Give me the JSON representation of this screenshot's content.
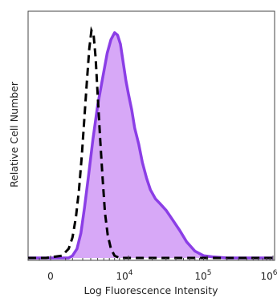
{
  "chart_data": {
    "type": "area",
    "xlabel": "Log Fluorescence Intensity",
    "ylabel": "Relative Cell Number",
    "x_scale": "biexponential",
    "xlim": [
      -1000,
      1000000
    ],
    "ylim": [
      0,
      1
    ],
    "grid": false,
    "x_ticks": [
      {
        "value": 0,
        "base": "0",
        "exp": ""
      },
      {
        "value": 10000,
        "base": "10",
        "exp": "4"
      },
      {
        "value": 100000,
        "base": "10",
        "exp": "5"
      },
      {
        "value": 1000000,
        "base": "10",
        "exp": "6"
      }
    ],
    "series": [
      {
        "style": "filled-area",
        "line_color": "#8b3ee6",
        "fill_color": "#d7a8f7",
        "x": [
          -1000,
          0,
          700,
          1000,
          1400,
          1800,
          2200,
          2700,
          3300,
          4000,
          4800,
          5600,
          6300,
          7000,
          7600,
          8200,
          8800,
          9400,
          10000,
          11000,
          12000,
          13500,
          15000,
          17000,
          19000,
          22000,
          25000,
          30000,
          36000,
          45000,
          55000,
          70000,
          90000,
          120000,
          200000,
          500000,
          1000000
        ],
        "y": [
          0.0,
          0.0,
          0.0,
          0.01,
          0.04,
          0.11,
          0.22,
          0.36,
          0.52,
          0.67,
          0.79,
          0.9,
          0.96,
          0.99,
          0.98,
          0.94,
          0.86,
          0.78,
          0.72,
          0.65,
          0.57,
          0.5,
          0.42,
          0.35,
          0.3,
          0.26,
          0.24,
          0.21,
          0.17,
          0.12,
          0.07,
          0.03,
          0.01,
          0.005,
          0.0,
          0.0,
          0.0
        ]
      },
      {
        "style": "dashed-line",
        "line_color": "#000000",
        "x": [
          -1000,
          -200,
          300,
          700,
          1000,
          1300,
          1600,
          1900,
          2200,
          2500,
          2800,
          3100,
          3400,
          3700,
          4000,
          4400,
          4800,
          5200,
          5700,
          6300,
          7000,
          8000,
          10000,
          1000000
        ],
        "y": [
          0.0,
          0.0,
          0.01,
          0.04,
          0.09,
          0.18,
          0.3,
          0.45,
          0.62,
          0.78,
          0.92,
          1.0,
          0.98,
          0.88,
          0.72,
          0.52,
          0.35,
          0.2,
          0.1,
          0.04,
          0.01,
          0.0,
          0.0,
          0.0
        ]
      }
    ]
  }
}
